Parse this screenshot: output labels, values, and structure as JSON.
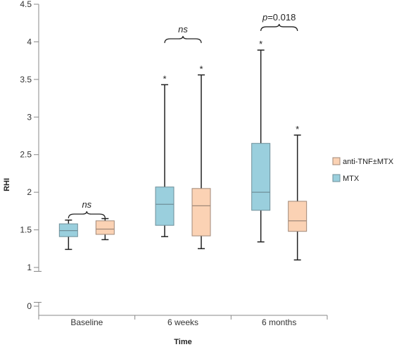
{
  "chart_data": {
    "type": "boxplot",
    "xlabel": "Time",
    "ylabel": "RHI",
    "ylim": [
      0,
      4.5
    ],
    "axis_break": [
      0.1,
      0.9
    ],
    "y_ticks": [
      {
        "value": 0,
        "label": "0"
      },
      {
        "value": 1,
        "label": "1"
      },
      {
        "value": 1.5,
        "label": "1.5"
      },
      {
        "value": 2,
        "label": "2"
      },
      {
        "value": 2.5,
        "label": "2.5"
      },
      {
        "value": 3,
        "label": "3"
      },
      {
        "value": 3.5,
        "label": "3.5"
      },
      {
        "value": 4,
        "label": "4"
      },
      {
        "value": 4.5,
        "label": "4.5"
      }
    ],
    "categories": [
      "Baseline",
      "6 weeks",
      "6 months"
    ],
    "legend_position": "right",
    "grid": false,
    "series": [
      {
        "name": "MTX",
        "color": "#9ACFDD",
        "stroke": "#6F8F99",
        "boxes": [
          {
            "min": 1.24,
            "q1": 1.41,
            "median": 1.49,
            "q3": 1.58,
            "max": 1.63,
            "star": false
          },
          {
            "min": 1.41,
            "q1": 1.56,
            "median": 1.84,
            "q3": 2.07,
            "max": 3.43,
            "star": true
          },
          {
            "min": 1.34,
            "q1": 1.76,
            "median": 2.0,
            "q3": 2.65,
            "max": 3.89,
            "star": true
          }
        ]
      },
      {
        "name": "anti-TNF±MTX",
        "color": "#FBD2B4",
        "stroke": "#A08878",
        "boxes": [
          {
            "min": 1.37,
            "q1": 1.44,
            "median": 1.51,
            "q3": 1.62,
            "max": 1.65,
            "star": false
          },
          {
            "min": 1.25,
            "q1": 1.42,
            "median": 1.82,
            "q3": 2.05,
            "max": 3.56,
            "star": true
          },
          {
            "min": 1.1,
            "q1": 1.48,
            "median": 1.62,
            "q3": 1.88,
            "max": 2.76,
            "star": true
          }
        ]
      }
    ],
    "star_symbol": "*",
    "annotations": [
      {
        "category": 0,
        "level": 1.71,
        "label": "ns",
        "italic_part": "ns",
        "rest": ""
      },
      {
        "category": 1,
        "level": 4.04,
        "label": "ns",
        "italic_part": "ns",
        "rest": ""
      },
      {
        "category": 2,
        "level": 4.2,
        "label": "p=0.018",
        "italic_part": "p",
        "rest": "=0.018"
      }
    ]
  }
}
